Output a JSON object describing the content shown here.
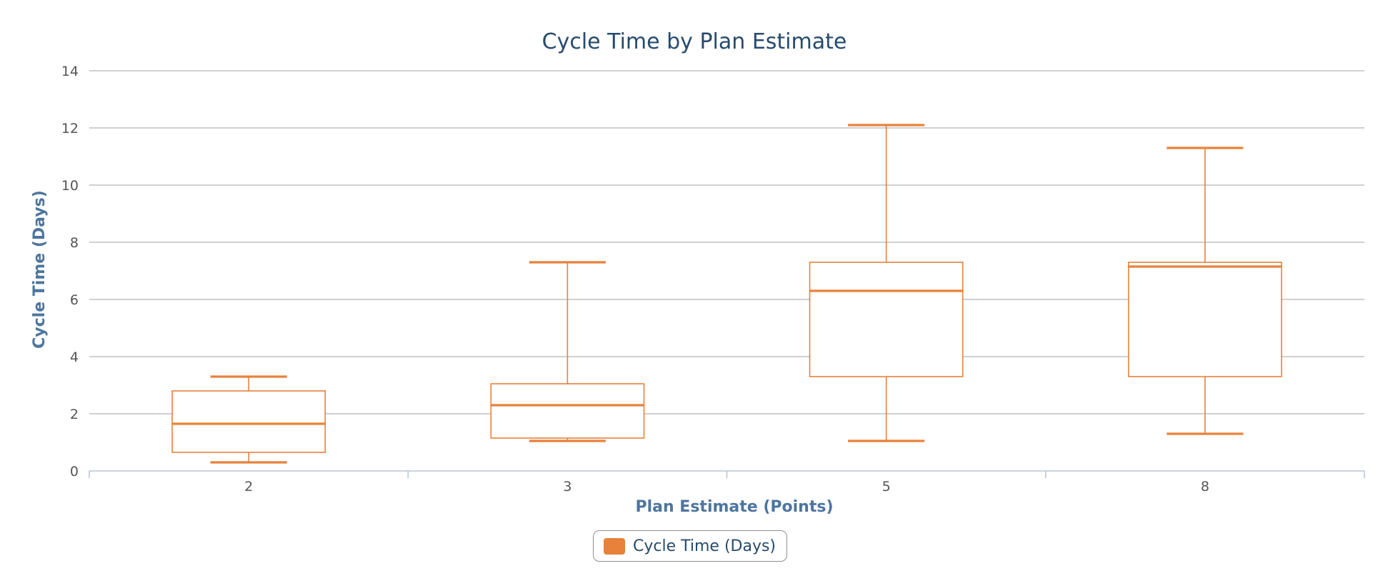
{
  "chart_data": {
    "type": "boxplot",
    "title": "Cycle Time by Plan Estimate",
    "xlabel": "Plan Estimate (Points)",
    "ylabel": "Cycle Time (Days)",
    "categories": [
      "2",
      "3",
      "5",
      "8"
    ],
    "ylim": [
      0,
      14
    ],
    "yticks": [
      0,
      2,
      4,
      6,
      8,
      10,
      12,
      14
    ],
    "grid": true,
    "legend_position": "bottom-center",
    "series": [
      {
        "name": "Cycle Time (Days)",
        "color": "#e8813a",
        "boxes": [
          {
            "category": "2",
            "low": 0.3,
            "q1": 0.65,
            "median": 1.65,
            "q3": 2.8,
            "high": 3.3
          },
          {
            "category": "3",
            "low": 1.05,
            "q1": 1.15,
            "median": 2.3,
            "q3": 3.05,
            "high": 7.3
          },
          {
            "category": "5",
            "low": 1.05,
            "q1": 3.3,
            "median": 6.3,
            "q3": 7.3,
            "high": 12.1
          },
          {
            "category": "8",
            "low": 1.3,
            "q1": 3.3,
            "median": 7.15,
            "q3": 7.3,
            "high": 11.3
          }
        ]
      }
    ]
  }
}
